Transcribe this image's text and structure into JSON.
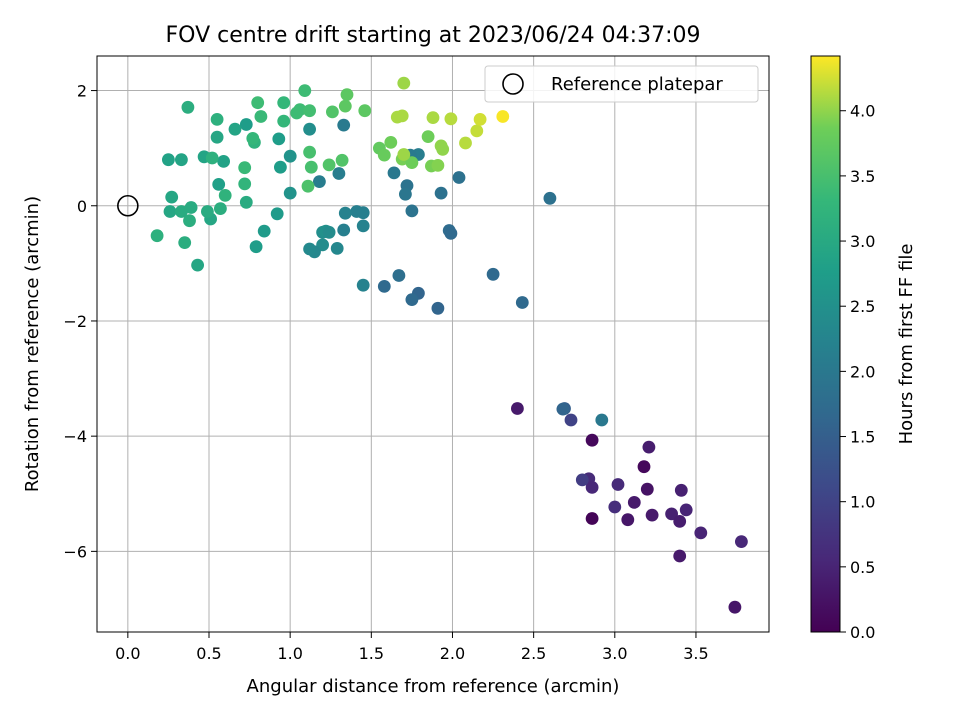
{
  "chart_data": {
    "type": "scatter",
    "title": "FOV centre drift starting at 2023/06/24 04:37:09",
    "xlabel": "Angular distance from reference (arcmin)",
    "ylabel": "Rotation from reference (arcmin)",
    "xlim": [
      -0.19,
      3.95
    ],
    "ylim": [
      -7.4,
      2.6
    ],
    "xticks": [
      "0.0",
      "0.5",
      "1.0",
      "1.5",
      "2.0",
      "2.5",
      "3.0",
      "3.5"
    ],
    "yticks": [
      "2",
      "0",
      "−2",
      "−4",
      "−6"
    ],
    "grid": true,
    "legend": {
      "placement": "top-right",
      "entries": [
        "Reference platepar"
      ]
    },
    "reference_point": {
      "name": "Reference platepar",
      "x": 0.0,
      "y": 0.0,
      "marker": "open-circle"
    },
    "colorbar": {
      "label": "Hours from first FF file",
      "colormap": "viridis",
      "range": [
        0.0,
        4.42
      ],
      "ticks": [
        "0.0",
        "0.5",
        "1.0",
        "1.5",
        "2.0",
        "2.5",
        "3.0",
        "3.5",
        "4.0"
      ]
    },
    "points": [
      [
        2.86,
        -5.43,
        0.05
      ],
      [
        2.86,
        -4.07,
        0.1
      ],
      [
        3.18,
        -4.53,
        0.1
      ],
      [
        3.74,
        -6.97,
        0.3
      ],
      [
        3.4,
        -6.08,
        0.35
      ],
      [
        3.08,
        -5.45,
        0.3
      ],
      [
        3.2,
        -4.92,
        0.25
      ],
      [
        3.12,
        -5.15,
        0.35
      ],
      [
        3.23,
        -5.37,
        0.35
      ],
      [
        3.21,
        -4.19,
        0.4
      ],
      [
        3.35,
        -5.35,
        0.45
      ],
      [
        3.4,
        -5.48,
        0.4
      ],
      [
        3.44,
        -5.28,
        0.5
      ],
      [
        3.53,
        -5.68,
        0.5
      ],
      [
        3.41,
        -4.94,
        0.45
      ],
      [
        3.78,
        -5.83,
        0.55
      ],
      [
        2.4,
        -3.52,
        0.35
      ],
      [
        2.84,
        -4.74,
        0.6
      ],
      [
        2.86,
        -4.89,
        0.55
      ],
      [
        3.02,
        -4.84,
        0.6
      ],
      [
        3.0,
        -5.23,
        0.65
      ],
      [
        2.8,
        -4.76,
        0.9
      ],
      [
        2.73,
        -3.72,
        1.0
      ],
      [
        2.69,
        -3.52,
        1.5
      ],
      [
        2.68,
        -3.53,
        1.6
      ],
      [
        2.92,
        -3.72,
        2.0
      ],
      [
        1.91,
        -1.78,
        1.6
      ],
      [
        1.79,
        -1.52,
        1.6
      ],
      [
        1.75,
        -1.63,
        1.7
      ],
      [
        1.58,
        -1.4,
        1.7
      ],
      [
        1.67,
        -1.21,
        1.8
      ],
      [
        2.25,
        -1.19,
        1.7
      ],
      [
        2.43,
        -1.68,
        1.7
      ],
      [
        2.6,
        0.13,
        1.85
      ],
      [
        2.04,
        0.49,
        1.85
      ],
      [
        1.93,
        0.22,
        1.85
      ],
      [
        1.98,
        -0.43,
        1.75
      ],
      [
        1.99,
        -0.48,
        1.7
      ],
      [
        1.75,
        -0.09,
        1.9
      ],
      [
        1.72,
        0.35,
        1.9
      ],
      [
        1.71,
        0.2,
        1.95
      ],
      [
        1.64,
        0.57,
        2.0
      ],
      [
        1.79,
        0.89,
        2.1
      ],
      [
        1.74,
        0.88,
        2.05
      ],
      [
        1.33,
        1.4,
        2.05
      ],
      [
        1.3,
        0.56,
        2.1
      ],
      [
        1.18,
        0.42,
        2.1
      ],
      [
        1.45,
        -1.38,
        2.2
      ],
      [
        1.33,
        -0.42,
        2.15
      ],
      [
        1.41,
        -0.1,
        2.15
      ],
      [
        1.45,
        -0.12,
        2.15
      ],
      [
        1.34,
        -0.13,
        2.2
      ],
      [
        1.45,
        -0.35,
        2.2
      ],
      [
        1.29,
        -0.74,
        2.3
      ],
      [
        1.2,
        -0.68,
        2.4
      ],
      [
        1.15,
        -0.8,
        2.3
      ],
      [
        1.12,
        -0.75,
        2.35
      ],
      [
        1.2,
        -0.46,
        2.45
      ],
      [
        1.22,
        -0.44,
        2.5
      ],
      [
        1.24,
        -0.46,
        2.4
      ],
      [
        1.12,
        1.33,
        2.45
      ],
      [
        1.0,
        0.22,
        2.55
      ],
      [
        1.0,
        0.86,
        2.55
      ],
      [
        0.92,
        -0.14,
        2.7
      ],
      [
        0.93,
        1.16,
        2.75
      ],
      [
        0.94,
        0.67,
        2.75
      ],
      [
        0.84,
        -0.44,
        2.7
      ],
      [
        0.79,
        -0.71,
        2.75
      ],
      [
        0.73,
        1.41,
        2.75
      ],
      [
        0.56,
        0.37,
        2.8
      ],
      [
        0.59,
        0.77,
        2.85
      ],
      [
        0.66,
        1.33,
        2.9
      ],
      [
        0.55,
        1.19,
        2.95
      ],
      [
        0.47,
        0.85,
        2.9
      ],
      [
        0.51,
        -0.23,
        2.95
      ],
      [
        0.43,
        -1.03,
        2.95
      ],
      [
        0.33,
        0.8,
        2.9
      ],
      [
        0.25,
        0.8,
        2.85
      ],
      [
        0.27,
        0.15,
        2.95
      ],
      [
        0.26,
        -0.1,
        2.95
      ],
      [
        0.33,
        -0.1,
        3.05
      ],
      [
        0.39,
        -0.03,
        3.05
      ],
      [
        0.38,
        -0.26,
        3.1
      ],
      [
        0.35,
        -0.64,
        3.1
      ],
      [
        0.18,
        -0.52,
        3.15
      ],
      [
        0.57,
        -0.05,
        3.1
      ],
      [
        0.49,
        -0.1,
        3.05
      ],
      [
        0.55,
        1.5,
        3.15
      ],
      [
        0.52,
        0.83,
        3.15
      ],
      [
        0.6,
        0.18,
        3.2
      ],
      [
        0.37,
        1.71,
        3.1
      ],
      [
        0.72,
        0.38,
        3.25
      ],
      [
        0.73,
        0.06,
        3.05
      ],
      [
        0.72,
        0.66,
        3.35
      ],
      [
        0.78,
        1.1,
        3.2
      ],
      [
        0.77,
        1.17,
        3.3
      ],
      [
        0.82,
        1.55,
        3.35
      ],
      [
        0.8,
        1.79,
        3.4
      ],
      [
        0.96,
        1.47,
        3.3
      ],
      [
        0.96,
        1.79,
        3.3
      ],
      [
        1.04,
        1.61,
        3.4
      ],
      [
        1.06,
        1.67,
        3.4
      ],
      [
        1.09,
        2.0,
        3.4
      ],
      [
        1.12,
        1.65,
        3.45
      ],
      [
        1.12,
        0.93,
        3.5
      ],
      [
        1.11,
        0.34,
        3.55
      ],
      [
        1.13,
        0.67,
        3.5
      ],
      [
        1.24,
        0.71,
        3.6
      ],
      [
        1.26,
        1.63,
        3.6
      ],
      [
        1.32,
        0.79,
        3.6
      ],
      [
        1.34,
        1.73,
        3.7
      ],
      [
        1.35,
        1.93,
        3.7
      ],
      [
        1.46,
        1.65,
        3.7
      ],
      [
        1.55,
        1.0,
        3.75
      ],
      [
        1.58,
        0.88,
        3.8
      ],
      [
        1.62,
        1.1,
        3.85
      ],
      [
        1.69,
        0.81,
        3.9
      ],
      [
        1.75,
        0.75,
        3.85
      ],
      [
        1.85,
        1.2,
        3.85
      ],
      [
        1.87,
        0.69,
        3.9
      ],
      [
        1.91,
        0.7,
        3.95
      ],
      [
        1.94,
        0.98,
        4.0
      ],
      [
        1.93,
        1.04,
        4.0
      ],
      [
        1.7,
        2.13,
        4.05
      ],
      [
        1.66,
        1.54,
        4.1
      ],
      [
        1.69,
        1.56,
        4.1
      ],
      [
        1.7,
        0.89,
        4.05
      ],
      [
        1.88,
        1.53,
        4.1
      ],
      [
        1.99,
        1.51,
        4.15
      ],
      [
        2.08,
        1.09,
        4.15
      ],
      [
        2.15,
        1.3,
        4.2
      ],
      [
        2.17,
        1.5,
        4.25
      ],
      [
        2.31,
        1.55,
        4.4
      ]
    ]
  }
}
